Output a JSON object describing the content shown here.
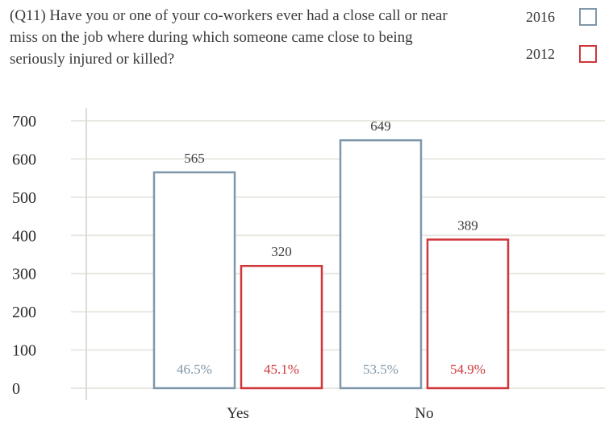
{
  "chart_data": {
    "type": "bar",
    "title": "(Q11) Have you or one of your co-workers ever had a close call or near miss on the job where during which someone came close to being seriously injured or killed?",
    "categories": [
      "Yes",
      "No"
    ],
    "series": [
      {
        "name": "2016",
        "values": [
          565,
          649
        ],
        "percent_labels": [
          "46.5%",
          "53.5%"
        ],
        "color": "#7f97aa"
      },
      {
        "name": "2012",
        "values": [
          320,
          389
        ],
        "percent_labels": [
          "45.1%",
          "54.9%"
        ],
        "color": "#d0353a"
      }
    ],
    "yticks": [
      "0",
      "100",
      "200",
      "300",
      "400",
      "500",
      "600",
      "700"
    ],
    "ylim": [
      0,
      700
    ],
    "grid": true,
    "legend_position": "top-right",
    "gridline_color": "#e8e8e3",
    "axis_color": "#dcdcd6"
  }
}
